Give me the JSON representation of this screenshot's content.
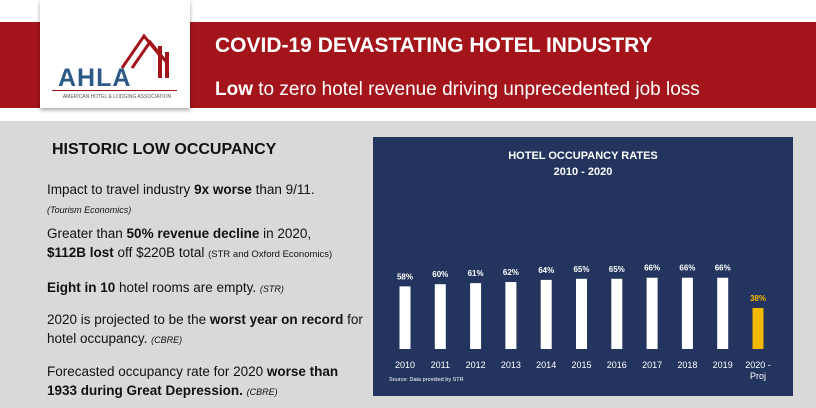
{
  "header": {
    "logo_text": "AHLA",
    "logo_subtext": "AMERICAN HOTEL & LODGING ASSOCIATION",
    "title": "COVID-19 DEVASTATING HOTEL INDUSTRY",
    "subtitle_bold": "Low",
    "subtitle_rest": " to zero hotel revenue driving unprecedented job loss"
  },
  "left": {
    "section_title": "HISTORIC LOW OCCUPANCY",
    "facts": [
      {
        "a": "Impact to travel industry ",
        "b": "9x worse",
        "c": " than 9/11.",
        "src": "(Tourism Economics)"
      },
      {
        "a": "Greater than ",
        "b": "50% revenue decline",
        "c": " in 2020,",
        "b2": "$112B lost",
        "c2": " off $220B total ",
        "src": "(STR and Oxford Economics)"
      },
      {
        "b": "Eight in 10",
        "c": " hotel rooms are empty. ",
        "src": "(STR)"
      },
      {
        "a": "2020 is projected to be the ",
        "b": "worst year on record",
        "c": " for hotel occupancy. ",
        "src": "(CBRE)"
      },
      {
        "a": "Forecasted occupancy rate for 2020 ",
        "b": "worse than 1933 during Great Depression.",
        "src": "(CBRE)"
      }
    ]
  },
  "chart_data": {
    "type": "bar",
    "title": "HOTEL OCCUPANCY RATES",
    "subtitle": "2010 - 2020",
    "categories": [
      "2010",
      "2011",
      "2012",
      "2013",
      "2014",
      "2015",
      "2016",
      "2017",
      "2018",
      "2019",
      "2020 - Proj"
    ],
    "values": [
      58,
      60,
      61,
      62,
      64,
      65,
      65,
      66,
      66,
      66,
      38
    ],
    "labels": [
      "58%",
      "60%",
      "61%",
      "62%",
      "64%",
      "65%",
      "65%",
      "66%",
      "66%",
      "66%",
      "38%"
    ],
    "ylim": [
      0,
      100
    ],
    "source": "Source: Data provided by STR",
    "colors": {
      "default": "#ffffff",
      "highlight": "#f5b800",
      "background": "#23355e",
      "text": "#ffffff"
    },
    "highlight_index": 10
  },
  "colors": {
    "brand_red": "#a3141b",
    "brand_blue": "#2b5a86",
    "panel": "#d9d9d9"
  }
}
